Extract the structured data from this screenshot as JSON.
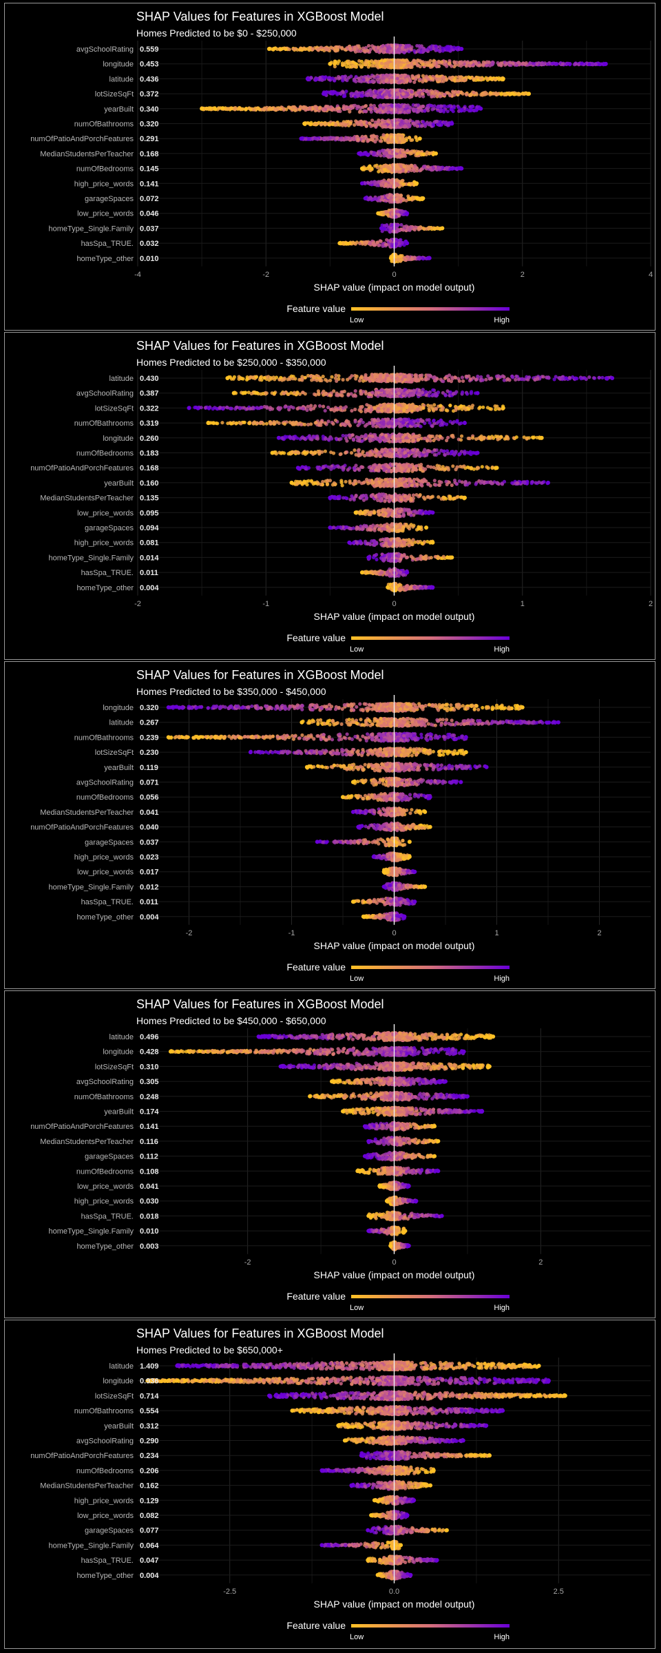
{
  "colors": {
    "low": "#ffc125",
    "mid": "#d56f7b",
    "high": "#6a00d8",
    "zero_line": "#f2f2f2"
  },
  "legend": {
    "title": "Feature value",
    "low_label": "Low",
    "high_label": "High"
  },
  "chart_data": [
    {
      "type": "scatter",
      "title": "SHAP Values for Features in XGBoost Model",
      "subtitle": "Homes Predicted to be $0 - $250,000",
      "xlabel": "SHAP value (impact on model output)",
      "xlim": [
        -4,
        4
      ],
      "xticks": [
        "-4",
        "-2",
        "0",
        "2",
        "4"
      ],
      "xtick_values": [
        -4,
        -2,
        0,
        2,
        4
      ],
      "features": [
        {
          "name": "avgSchoolRating",
          "value": "0.559",
          "min": -1.95,
          "max": 1.05,
          "direction": "pos"
        },
        {
          "name": "longitude",
          "value": "0.453",
          "min": -1.0,
          "max": 3.3,
          "direction": "pos"
        },
        {
          "name": "latitude",
          "value": "0.436",
          "min": -1.35,
          "max": 1.7,
          "direction": "neg"
        },
        {
          "name": "lotSizeSqFt",
          "value": "0.372",
          "min": -1.1,
          "max": 2.1,
          "direction": "neg"
        },
        {
          "name": "yearBuilt",
          "value": "0.340",
          "min": -3.0,
          "max": 1.35,
          "direction": "pos"
        },
        {
          "name": "numOfBathrooms",
          "value": "0.320",
          "min": -1.4,
          "max": 0.9,
          "direction": "pos"
        },
        {
          "name": "numOfPatioAndPorchFeatures",
          "value": "0.291",
          "min": -1.45,
          "max": 0.4,
          "direction": "neg"
        },
        {
          "name": "MedianStudentsPerTeacher",
          "value": "0.168",
          "min": -0.55,
          "max": 0.65,
          "direction": "neg"
        },
        {
          "name": "numOfBedrooms",
          "value": "0.145",
          "min": -0.5,
          "max": 1.05,
          "direction": "pos"
        },
        {
          "name": "high_price_words",
          "value": "0.141",
          "min": -0.5,
          "max": 0.35,
          "direction": "neg"
        },
        {
          "name": "garageSpaces",
          "value": "0.072",
          "min": -0.45,
          "max": 0.45,
          "direction": "neg"
        },
        {
          "name": "low_price_words",
          "value": "0.046",
          "min": -0.25,
          "max": 0.2,
          "direction": "pos"
        },
        {
          "name": "homeType_Single.Family",
          "value": "0.037",
          "min": -0.2,
          "max": 0.75,
          "direction": "neg"
        },
        {
          "name": "hasSpa_TRUE.",
          "value": "0.032",
          "min": -0.85,
          "max": 0.2,
          "direction": "pos"
        },
        {
          "name": "homeType_other",
          "value": "0.010",
          "min": -0.05,
          "max": 0.55,
          "direction": "pos"
        }
      ]
    },
    {
      "type": "scatter",
      "title": "SHAP Values for Features in XGBoost Model",
      "subtitle": "Homes Predicted to be $250,000 - $350,000",
      "xlabel": "SHAP value (impact on model output)",
      "xlim": [
        -2,
        2
      ],
      "xticks": [
        "-2",
        "-1",
        "0",
        "1",
        "2"
      ],
      "xtick_values": [
        -2,
        -1,
        0,
        1,
        2
      ],
      "features": [
        {
          "name": "latitude",
          "value": "0.430",
          "min": -1.3,
          "max": 1.7,
          "direction": "pos"
        },
        {
          "name": "avgSchoolRating",
          "value": "0.387",
          "min": -1.25,
          "max": 0.65,
          "direction": "pos"
        },
        {
          "name": "lotSizeSqFt",
          "value": "0.322",
          "min": -1.6,
          "max": 0.85,
          "direction": "neg"
        },
        {
          "name": "numOfBathrooms",
          "value": "0.319",
          "min": -1.45,
          "max": 0.55,
          "direction": "pos"
        },
        {
          "name": "longitude",
          "value": "0.260",
          "min": -0.9,
          "max": 1.15,
          "direction": "neg"
        },
        {
          "name": "numOfBedrooms",
          "value": "0.183",
          "min": -0.95,
          "max": 0.65,
          "direction": "pos"
        },
        {
          "name": "numOfPatioAndPorchFeatures",
          "value": "0.168",
          "min": -0.75,
          "max": 0.8,
          "direction": "neg"
        },
        {
          "name": "yearBuilt",
          "value": "0.160",
          "min": -0.8,
          "max": 1.2,
          "direction": "pos"
        },
        {
          "name": "MedianStudentsPerTeacher",
          "value": "0.135",
          "min": -0.5,
          "max": 0.55,
          "direction": "neg"
        },
        {
          "name": "low_price_words",
          "value": "0.095",
          "min": -0.3,
          "max": 0.3,
          "direction": "pos"
        },
        {
          "name": "garageSpaces",
          "value": "0.094",
          "min": -0.5,
          "max": 0.25,
          "direction": "neg"
        },
        {
          "name": "high_price_words",
          "value": "0.081",
          "min": -0.35,
          "max": 0.3,
          "direction": "neg"
        },
        {
          "name": "homeType_Single.Family",
          "value": "0.014",
          "min": -0.2,
          "max": 0.45,
          "direction": "neg"
        },
        {
          "name": "hasSpa_TRUE.",
          "value": "0.011",
          "min": -0.25,
          "max": 0.1,
          "direction": "pos"
        },
        {
          "name": "homeType_other",
          "value": "0.004",
          "min": -0.05,
          "max": 0.3,
          "direction": "pos"
        }
      ]
    },
    {
      "type": "scatter",
      "title": "SHAP Values for Features in XGBoost Model",
      "subtitle": "Homes Predicted to be $350,000 - $450,000",
      "xlabel": "SHAP value (impact on model output)",
      "xlim": [
        -2.5,
        2.5
      ],
      "xticks": [
        "-2",
        "-1",
        "0",
        "1",
        "2"
      ],
      "xtick_values": [
        -2,
        -1,
        0,
        1,
        2
      ],
      "features": [
        {
          "name": "longitude",
          "value": "0.320",
          "min": -2.2,
          "max": 1.25,
          "direction": "neg"
        },
        {
          "name": "latitude",
          "value": "0.267",
          "min": -0.9,
          "max": 1.6,
          "direction": "pos"
        },
        {
          "name": "numOfBathrooms",
          "value": "0.239",
          "min": -2.2,
          "max": 0.7,
          "direction": "pos"
        },
        {
          "name": "lotSizeSqFt",
          "value": "0.230",
          "min": -1.4,
          "max": 0.7,
          "direction": "neg"
        },
        {
          "name": "yearBuilt",
          "value": "0.119",
          "min": -0.85,
          "max": 0.9,
          "direction": "pos"
        },
        {
          "name": "avgSchoolRating",
          "value": "0.071",
          "min": -0.4,
          "max": 0.65,
          "direction": "pos"
        },
        {
          "name": "numOfBedrooms",
          "value": "0.056",
          "min": -0.5,
          "max": 0.35,
          "direction": "pos"
        },
        {
          "name": "MedianStudentsPerTeacher",
          "value": "0.041",
          "min": -0.4,
          "max": 0.3,
          "direction": "neg"
        },
        {
          "name": "numOfPatioAndPorchFeatures",
          "value": "0.040",
          "min": -0.35,
          "max": 0.35,
          "direction": "neg"
        },
        {
          "name": "garageSpaces",
          "value": "0.037",
          "min": -0.75,
          "max": 0.15,
          "direction": "neg"
        },
        {
          "name": "high_price_words",
          "value": "0.023",
          "min": -0.2,
          "max": 0.15,
          "direction": "neg"
        },
        {
          "name": "low_price_words",
          "value": "0.017",
          "min": -0.1,
          "max": 0.2,
          "direction": "pos"
        },
        {
          "name": "homeType_Single.Family",
          "value": "0.012",
          "min": -0.1,
          "max": 0.3,
          "direction": "neg"
        },
        {
          "name": "hasSpa_TRUE.",
          "value": "0.011",
          "min": -0.4,
          "max": 0.2,
          "direction": "pos"
        },
        {
          "name": "homeType_other",
          "value": "0.004",
          "min": -0.3,
          "max": 0.1,
          "direction": "pos"
        }
      ]
    },
    {
      "type": "scatter",
      "title": "SHAP Values for Features in XGBoost Model",
      "subtitle": "Homes Predicted to be $450,000 - $650,000",
      "xlabel": "SHAP value (impact on model output)",
      "xlim": [
        -3.5,
        3.5
      ],
      "xticks": [
        "-2",
        "0",
        "2"
      ],
      "xtick_values": [
        -2,
        0,
        2
      ],
      "features": [
        {
          "name": "latitude",
          "value": "0.496",
          "min": -1.85,
          "max": 1.35,
          "direction": "neg"
        },
        {
          "name": "longitude",
          "value": "0.428",
          "min": -3.05,
          "max": 0.95,
          "direction": "pos"
        },
        {
          "name": "lotSizeSqFt",
          "value": "0.310",
          "min": -1.55,
          "max": 1.3,
          "direction": "neg"
        },
        {
          "name": "avgSchoolRating",
          "value": "0.305",
          "min": -0.85,
          "max": 0.7,
          "direction": "pos"
        },
        {
          "name": "numOfBathrooms",
          "value": "0.248",
          "min": -1.15,
          "max": 1.0,
          "direction": "pos"
        },
        {
          "name": "yearBuilt",
          "value": "0.174",
          "min": -0.7,
          "max": 1.2,
          "direction": "pos"
        },
        {
          "name": "numOfPatioAndPorchFeatures",
          "value": "0.141",
          "min": -0.4,
          "max": 0.55,
          "direction": "neg"
        },
        {
          "name": "MedianStudentsPerTeacher",
          "value": "0.116",
          "min": -0.35,
          "max": 0.6,
          "direction": "neg"
        },
        {
          "name": "garageSpaces",
          "value": "0.112",
          "min": -0.4,
          "max": 0.55,
          "direction": "neg"
        },
        {
          "name": "numOfBedrooms",
          "value": "0.108",
          "min": -0.5,
          "max": 0.6,
          "direction": "pos"
        },
        {
          "name": "low_price_words",
          "value": "0.041",
          "min": -0.2,
          "max": 0.2,
          "direction": "pos"
        },
        {
          "name": "high_price_words",
          "value": "0.030",
          "min": -0.1,
          "max": 0.3,
          "direction": "pos"
        },
        {
          "name": "hasSpa_TRUE.",
          "value": "0.018",
          "min": -0.35,
          "max": 0.65,
          "direction": "pos"
        },
        {
          "name": "homeType_Single.Family",
          "value": "0.010",
          "min": -0.35,
          "max": 0.15,
          "direction": "neg"
        },
        {
          "name": "homeType_other",
          "value": "0.003",
          "min": -0.05,
          "max": 0.2,
          "direction": "pos"
        }
      ]
    },
    {
      "type": "scatter",
      "title": "SHAP Values for Features in XGBoost Model",
      "subtitle": "Homes Predicted to be $650,000+",
      "xlabel": "SHAP value (impact on model output)",
      "xlim": [
        -3.9,
        3.9
      ],
      "xticks": [
        "-2.5",
        "0.0",
        "2.5"
      ],
      "xtick_values": [
        -2.5,
        0,
        2.5
      ],
      "features": [
        {
          "name": "latitude",
          "value": "1.409",
          "min": -3.3,
          "max": 2.2,
          "direction": "neg"
        },
        {
          "name": "longitude",
          "value": "0.936",
          "min": -3.75,
          "max": 2.35,
          "direction": "pos"
        },
        {
          "name": "lotSizeSqFt",
          "value": "0.714",
          "min": -1.9,
          "max": 2.6,
          "direction": "neg"
        },
        {
          "name": "numOfBathrooms",
          "value": "0.554",
          "min": -1.55,
          "max": 1.65,
          "direction": "pos"
        },
        {
          "name": "yearBuilt",
          "value": "0.312",
          "min": -0.85,
          "max": 1.4,
          "direction": "pos"
        },
        {
          "name": "avgSchoolRating",
          "value": "0.290",
          "min": -0.75,
          "max": 1.05,
          "direction": "pos"
        },
        {
          "name": "numOfPatioAndPorchFeatures",
          "value": "0.234",
          "min": -0.5,
          "max": 1.45,
          "direction": "neg"
        },
        {
          "name": "numOfBedrooms",
          "value": "0.206",
          "min": -1.1,
          "max": 0.6,
          "direction": "neg"
        },
        {
          "name": "MedianStudentsPerTeacher",
          "value": "0.162",
          "min": -0.65,
          "max": 0.55,
          "direction": "neg"
        },
        {
          "name": "high_price_words",
          "value": "0.129",
          "min": -0.3,
          "max": 0.3,
          "direction": "pos"
        },
        {
          "name": "low_price_words",
          "value": "0.082",
          "min": -0.35,
          "max": 0.2,
          "direction": "pos"
        },
        {
          "name": "garageSpaces",
          "value": "0.077",
          "min": -0.4,
          "max": 0.8,
          "direction": "neg"
        },
        {
          "name": "homeType_Single.Family",
          "value": "0.064",
          "min": -1.1,
          "max": 0.1,
          "direction": "neg"
        },
        {
          "name": "hasSpa_TRUE.",
          "value": "0.047",
          "min": -0.4,
          "max": 0.65,
          "direction": "pos"
        },
        {
          "name": "homeType_other",
          "value": "0.004",
          "min": -0.25,
          "max": 0.25,
          "direction": "pos"
        }
      ]
    }
  ]
}
